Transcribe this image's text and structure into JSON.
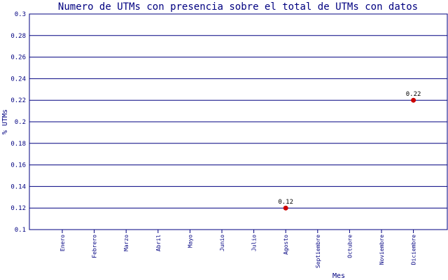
{
  "chart_data": {
    "type": "scatter",
    "title": "Numero de UTMs con presencia sobre el total de UTMs con datos",
    "xlabel": "Mes",
    "ylabel": "% UTMs",
    "categories": [
      "Enero",
      "Febrero",
      "Marzo",
      "Abril",
      "Mayo",
      "Junio",
      "Julio",
      "Agosto",
      "Septiembre",
      "Octubre",
      "Noviembre",
      "Diciembre"
    ],
    "y_ticks": [
      "0.1",
      "0.12",
      "0.14",
      "0.16",
      "0.18",
      "0.2",
      "0.22",
      "0.24",
      "0.26",
      "0.28",
      "0.3"
    ],
    "ylim": [
      0.1,
      0.3
    ],
    "grid": true,
    "points": [
      {
        "category": "Agosto",
        "value": 0.12,
        "label": "0.12"
      },
      {
        "category": "Diciembre",
        "value": 0.22,
        "label": "0.22"
      }
    ],
    "colors": {
      "axis": "#000080",
      "grid": "#000080",
      "point": "#cc0000",
      "text": "#000080"
    }
  }
}
